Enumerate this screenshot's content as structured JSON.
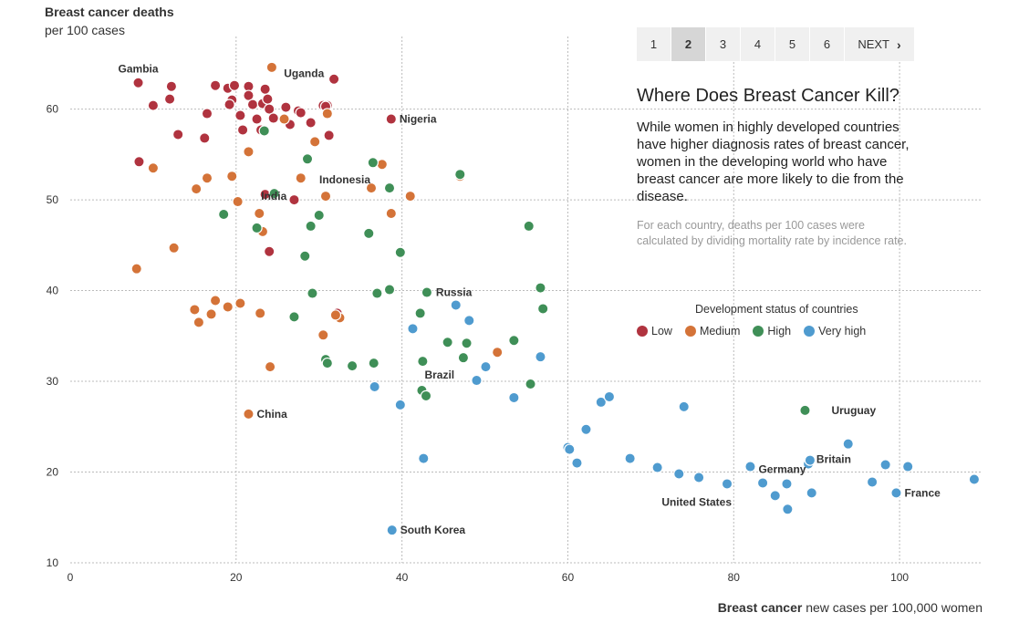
{
  "chart_data": {
    "type": "scatter",
    "ylabel_bold": "Breast cancer deaths",
    "ylabel_sub": "per 100 cases",
    "xlabel_bold": "Breast cancer",
    "xlabel_rest": " new cases per 100,000 women",
    "xlim": [
      0,
      110
    ],
    "ylim": [
      10,
      68
    ],
    "xticks": [
      0,
      20,
      40,
      60,
      80,
      100
    ],
    "yticks": [
      10,
      20,
      30,
      40,
      50,
      60
    ],
    "grid": true,
    "legend_title": "Development status of countries",
    "legend_placement": "right",
    "series": [
      {
        "name": "Low",
        "color": "#b0333f",
        "points": [
          [
            8.2,
            62.9
          ],
          [
            10,
            60.4
          ],
          [
            12,
            61.1
          ],
          [
            12.2,
            62.5
          ],
          [
            13,
            57.2
          ],
          [
            16.5,
            59.5
          ],
          [
            16.2,
            56.8
          ],
          [
            17.5,
            62.6
          ],
          [
            19,
            62.3
          ],
          [
            19.8,
            62.6
          ],
          [
            19.5,
            61
          ],
          [
            19.2,
            60.5
          ],
          [
            20.5,
            59.3
          ],
          [
            20.8,
            57.7
          ],
          [
            21.5,
            62.5
          ],
          [
            21.5,
            61.5
          ],
          [
            22,
            60.5
          ],
          [
            22.5,
            58.9
          ],
          [
            23,
            57.7
          ],
          [
            23.2,
            60.6
          ],
          [
            23.5,
            62.2
          ],
          [
            23.8,
            61.1
          ],
          [
            24,
            60
          ],
          [
            24.5,
            59
          ],
          [
            26,
            60.2
          ],
          [
            26.5,
            58.3
          ],
          [
            27.5,
            59.8
          ],
          [
            27.8,
            59.6
          ],
          [
            29,
            58.5
          ],
          [
            30.5,
            60.4
          ],
          [
            31,
            60.4
          ],
          [
            31.2,
            57.1
          ],
          [
            31.8,
            63.3
          ],
          [
            8.3,
            54.2
          ],
          [
            23.5,
            50.6
          ],
          [
            27,
            50
          ],
          [
            24,
            44.3
          ],
          [
            32.2,
            37.5
          ],
          [
            38.7,
            58.9
          ],
          [
            30.8,
            60.3
          ]
        ]
      },
      {
        "name": "Medium",
        "color": "#d47338",
        "points": [
          [
            8,
            42.4
          ],
          [
            10,
            53.5
          ],
          [
            12.5,
            44.7
          ],
          [
            15,
            37.9
          ],
          [
            15.2,
            51.2
          ],
          [
            15.5,
            36.5
          ],
          [
            16.5,
            52.4
          ],
          [
            17,
            37.4
          ],
          [
            17.5,
            38.9
          ],
          [
            19,
            38.2
          ],
          [
            19.5,
            52.6
          ],
          [
            20.2,
            49.8
          ],
          [
            20.5,
            38.6
          ],
          [
            21.5,
            55.3
          ],
          [
            22.9,
            37.5
          ],
          [
            22.8,
            48.5
          ],
          [
            23.2,
            46.5
          ],
          [
            24.1,
            31.6
          ],
          [
            24.3,
            64.6
          ],
          [
            25.8,
            58.9
          ],
          [
            27.8,
            52.4
          ],
          [
            29.5,
            56.4
          ],
          [
            30.5,
            35.1
          ],
          [
            30.8,
            50.4
          ],
          [
            31,
            59.5
          ],
          [
            32.5,
            37
          ],
          [
            36.3,
            51.3
          ],
          [
            37.6,
            53.9
          ],
          [
            38.7,
            48.5
          ],
          [
            41,
            50.4
          ],
          [
            47,
            52.6
          ],
          [
            51.5,
            33.2
          ],
          [
            21.5,
            26.4
          ],
          [
            32,
            37.3
          ]
        ]
      },
      {
        "name": "High",
        "color": "#3f8f57",
        "points": [
          [
            18.5,
            48.4
          ],
          [
            22.5,
            46.9
          ],
          [
            23.4,
            57.6
          ],
          [
            24.6,
            50.7
          ],
          [
            27,
            37.1
          ],
          [
            28.3,
            43.8
          ],
          [
            28.6,
            54.5
          ],
          [
            29,
            47.1
          ],
          [
            29.2,
            39.7
          ],
          [
            30,
            48.3
          ],
          [
            30.8,
            32.4
          ],
          [
            31,
            32
          ],
          [
            34,
            31.7
          ],
          [
            36,
            46.3
          ],
          [
            36.5,
            54.1
          ],
          [
            36.6,
            32
          ],
          [
            37,
            39.7
          ],
          [
            38.5,
            40.1
          ],
          [
            38.5,
            51.3
          ],
          [
            39.8,
            44.2
          ],
          [
            42.2,
            37.5
          ],
          [
            42.5,
            32.2
          ],
          [
            42.4,
            29
          ],
          [
            42.9,
            28.4
          ],
          [
            43,
            39.8
          ],
          [
            45.5,
            34.3
          ],
          [
            47,
            52.8
          ],
          [
            47.4,
            32.6
          ],
          [
            47.8,
            34.2
          ],
          [
            53.5,
            34.5
          ],
          [
            55.3,
            47.1
          ],
          [
            55.5,
            29.7
          ],
          [
            56.7,
            40.3
          ],
          [
            57,
            38
          ],
          [
            88.6,
            26.8
          ]
        ]
      },
      {
        "name": "Very high",
        "color": "#4f9bcf",
        "points": [
          [
            36.7,
            29.4
          ],
          [
            38.8,
            13.6
          ],
          [
            39.8,
            27.4
          ],
          [
            41.3,
            35.8
          ],
          [
            42.6,
            21.5
          ],
          [
            46.5,
            38.4
          ],
          [
            48.1,
            36.7
          ],
          [
            49,
            30.1
          ],
          [
            50.1,
            31.6
          ],
          [
            53.5,
            28.2
          ],
          [
            56.7,
            32.7
          ],
          [
            60,
            22.7
          ],
          [
            60.2,
            22.5
          ],
          [
            61.1,
            21
          ],
          [
            62.2,
            24.7
          ],
          [
            64,
            27.7
          ],
          [
            65,
            28.3
          ],
          [
            67.5,
            21.5
          ],
          [
            70.8,
            20.5
          ],
          [
            73.4,
            19.8
          ],
          [
            74,
            27.2
          ],
          [
            75.8,
            19.4
          ],
          [
            79.2,
            18.7
          ],
          [
            82,
            20.6
          ],
          [
            83.5,
            18.8
          ],
          [
            85,
            17.4
          ],
          [
            86.4,
            18.7
          ],
          [
            86.5,
            15.9
          ],
          [
            89,
            20.9
          ],
          [
            89.2,
            21.3
          ],
          [
            89.4,
            17.7
          ],
          [
            93.8,
            23.1
          ],
          [
            96.7,
            18.9
          ],
          [
            98.3,
            20.8
          ],
          [
            99.6,
            17.7
          ],
          [
            101,
            20.6
          ],
          [
            109,
            19.2
          ]
        ]
      }
    ],
    "annotations": [
      {
        "text": "Gambia",
        "x": 8.2,
        "y": 62.9
      },
      {
        "text": "Uganda",
        "x": 25,
        "y": 62.5
      },
      {
        "text": "Nigeria",
        "x": 38.7,
        "y": 58.9
      },
      {
        "text": "India",
        "x": 22.8,
        "y": 48.5
      },
      {
        "text": "Indonesia",
        "x": 36.3,
        "y": 51.3
      },
      {
        "text": "Russia",
        "x": 43,
        "y": 39.8
      },
      {
        "text": "Brazil",
        "x": 42.4,
        "y": 29
      },
      {
        "text": "China",
        "x": 21.5,
        "y": 26.4
      },
      {
        "text": "South Korea",
        "x": 38.8,
        "y": 13.6
      },
      {
        "text": "Uruguay",
        "x": 90.8,
        "y": 26.8
      },
      {
        "text": "Germany",
        "x": 82,
        "y": 20.6
      },
      {
        "text": "Britain",
        "x": 89.2,
        "y": 21.3
      },
      {
        "text": "United States",
        "x": 79.2,
        "y": 18.7
      },
      {
        "text": "France",
        "x": 99.6,
        "y": 17.7
      }
    ]
  },
  "pager": {
    "pages": [
      "1",
      "2",
      "3",
      "4",
      "5",
      "6"
    ],
    "active": "2",
    "next_label": "NEXT"
  },
  "panel": {
    "title": "Where Does Breast Cancer Kill?",
    "description": "While women in highly developed countries have higher diagnosis rates of breast cancer, women in the developing world who have breast cancer are more likely to die from the disease.",
    "note": "For each country, deaths per 100 cases were calculated by dividing mortality rate by incidence rate."
  }
}
